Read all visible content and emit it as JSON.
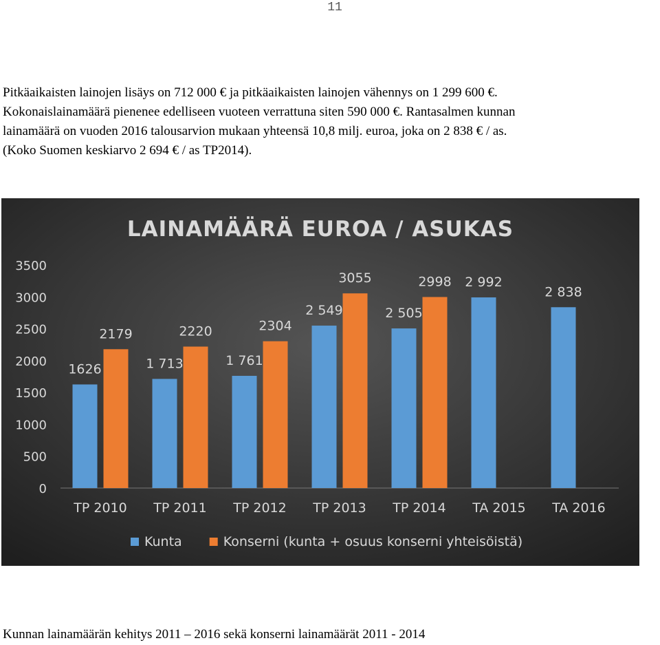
{
  "page_number": "11",
  "paragraph": [
    "Pitkäaikaisten lainojen lisäys on 712 000 € ja pitkäaikaisten lainojen vähennys on 1 299 600 €.",
    "Kokonaislainamäärä pienenee edelliseen vuoteen verrattuna siten 590 000 €.  Rantasalmen kunnan",
    "lainamäärä on vuoden 2016 talousarvion mukaan yhteensä 10,8 milj. euroa, joka on 2 838 € / as.",
    "(Koko Suomen keskiarvo 2 694 € / as TP2014)."
  ],
  "chart_data": {
    "type": "bar",
    "title": "LAINAMÄÄRÄ EUROA / ASUKAS",
    "categories": [
      "TP 2010",
      "TP 2011",
      "TP 2012",
      "TP 2013",
      "TP 2014",
      "TA 2015",
      "TA 2016"
    ],
    "series": [
      {
        "name": "Kunta",
        "color": "#5b9bd5",
        "values": [
          1626,
          1713,
          1761,
          2549,
          2505,
          2992,
          2838
        ],
        "value_labels": [
          "1626",
          "1 713",
          "1 761",
          "2 549",
          "2 505",
          "2 992",
          "2 838"
        ]
      },
      {
        "name": "Konserni (kunta + osuus konserni yhteisöistä)",
        "color": "#ed7d31",
        "values": [
          2179,
          2220,
          2304,
          3055,
          2998,
          null,
          null
        ]
      }
    ],
    "ylim": [
      0,
      3500
    ],
    "yticks": [
      0,
      500,
      1000,
      1500,
      2000,
      2500,
      3000,
      3500
    ],
    "grid": false,
    "legend": "bottom"
  },
  "caption": "Kunnan lainamäärän kehitys 2011 – 2016 sekä konserni lainamäärät 2011 - 2014"
}
